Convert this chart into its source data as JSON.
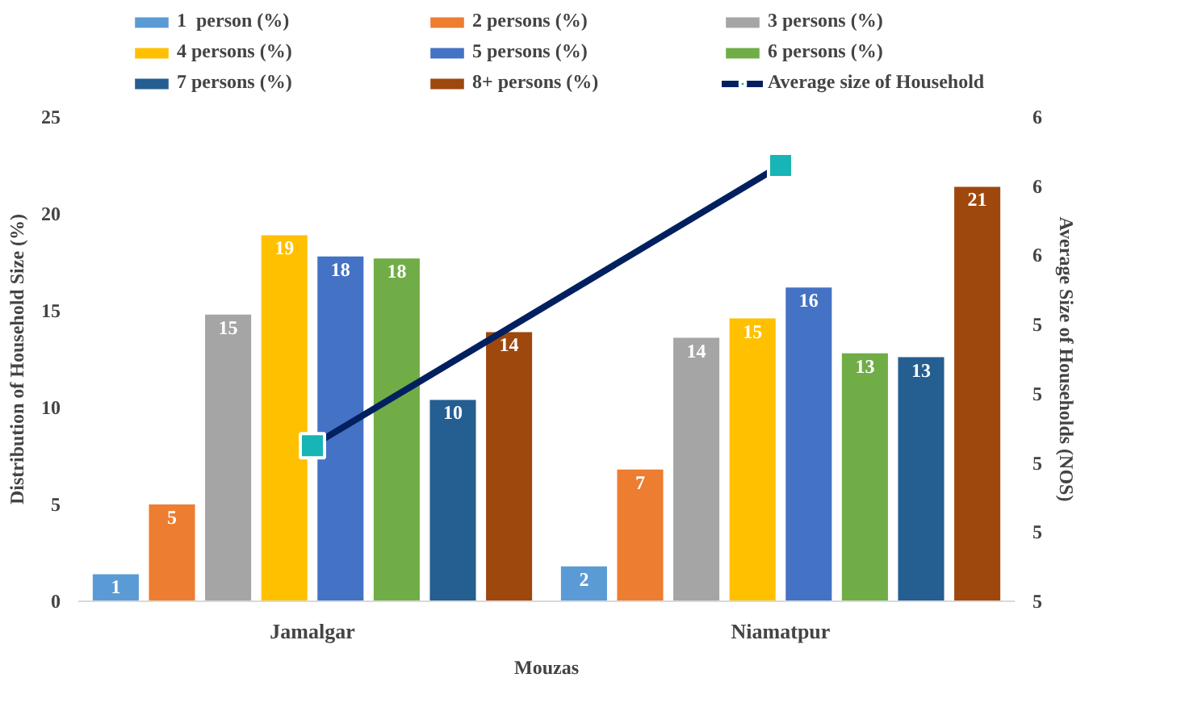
{
  "chart_data": {
    "type": "bar",
    "xlabel": "Mouzas",
    "ylabel": "Distribution of Household Size (%)",
    "y2label": "Average Size of Households (NOS)",
    "categories": [
      "Jamalgar",
      "Niamatpur"
    ],
    "series": [
      {
        "name": "1  person (%)",
        "color": "#5b9bd5",
        "values": [
          1.4,
          1.8
        ],
        "value_labels": [
          "1",
          "2"
        ]
      },
      {
        "name": "2 persons (%)",
        "color": "#ed7d31",
        "values": [
          5.0,
          6.8
        ],
        "value_labels": [
          "5",
          "7"
        ]
      },
      {
        "name": "3 persons (%)",
        "color": "#a5a5a5",
        "values": [
          14.8,
          13.6
        ],
        "value_labels": [
          "15",
          "14"
        ]
      },
      {
        "name": "4 persons (%)",
        "color": "#ffc000",
        "values": [
          18.9,
          14.6
        ],
        "value_labels": [
          "19",
          "15"
        ]
      },
      {
        "name": "5 persons (%)",
        "color": "#4472c4",
        "values": [
          17.8,
          16.2
        ],
        "value_labels": [
          "18",
          "16"
        ]
      },
      {
        "name": "6 persons (%)",
        "color": "#70ad47",
        "values": [
          17.7,
          12.8
        ],
        "value_labels": [
          "18",
          "13"
        ]
      },
      {
        "name": "7 persons (%)",
        "color": "#255e91",
        "values": [
          10.4,
          12.6
        ],
        "value_labels": [
          "10",
          "13"
        ]
      },
      {
        "name": "8+ persons (%)",
        "color": "#9e480e",
        "values": [
          13.9,
          21.4
        ],
        "value_labels": [
          "14",
          "21"
        ]
      },
      {
        "name": "Average size of Household",
        "type": "line",
        "axis": "y2",
        "color": "#002060",
        "marker": "square",
        "values": [
          5.05,
          5.86
        ]
      }
    ],
    "ylim": [
      0,
      25
    ],
    "yticks": [
      0,
      5,
      10,
      15,
      20,
      25
    ],
    "y2lim": [
      4.6,
      6.0
    ],
    "y2ticks": [
      {
        "value": 4.6,
        "label": "5"
      },
      {
        "value": 4.8,
        "label": "5"
      },
      {
        "value": 5.0,
        "label": "5"
      },
      {
        "value": 5.2,
        "label": "5"
      },
      {
        "value": 5.4,
        "label": "5"
      },
      {
        "value": 5.6,
        "label": "6"
      },
      {
        "value": 5.8,
        "label": "6"
      },
      {
        "value": 6.0,
        "label": "6"
      }
    ],
    "grid": false,
    "legend": "top"
  }
}
